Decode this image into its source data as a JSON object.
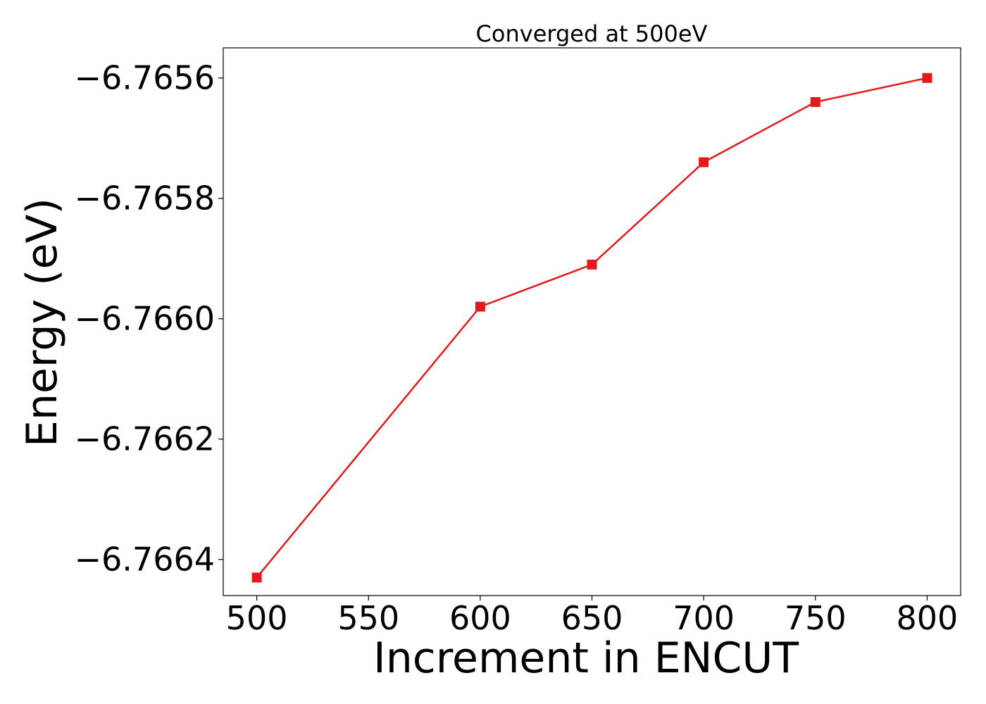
{
  "chart_data": {
    "type": "line",
    "title": "Converged at 500eV",
    "xlabel": "Increment in ENCUT",
    "ylabel": "Energy (eV)",
    "x": [
      500,
      600,
      650,
      700,
      750,
      800
    ],
    "series": [
      {
        "values": [
          -6.76643,
          -6.76598,
          -6.76591,
          -6.76574,
          -6.76564,
          -6.7656
        ],
        "color": "#e3191c",
        "marker": "square"
      }
    ],
    "xticks": [
      500,
      550,
      600,
      650,
      700,
      750,
      800
    ],
    "xtick_labels": [
      "500",
      "550",
      "600",
      "650",
      "700",
      "750",
      "800"
    ],
    "yticks": [
      -6.7664,
      -6.7662,
      -6.766,
      -6.7658,
      -6.7656
    ],
    "ytick_labels": [
      "−6.7664",
      "−6.7662",
      "−6.7660",
      "−6.7658",
      "−6.7656"
    ],
    "xlim": [
      485,
      815
    ],
    "ylim": [
      -6.76646,
      -6.76555
    ],
    "grid": false
  }
}
